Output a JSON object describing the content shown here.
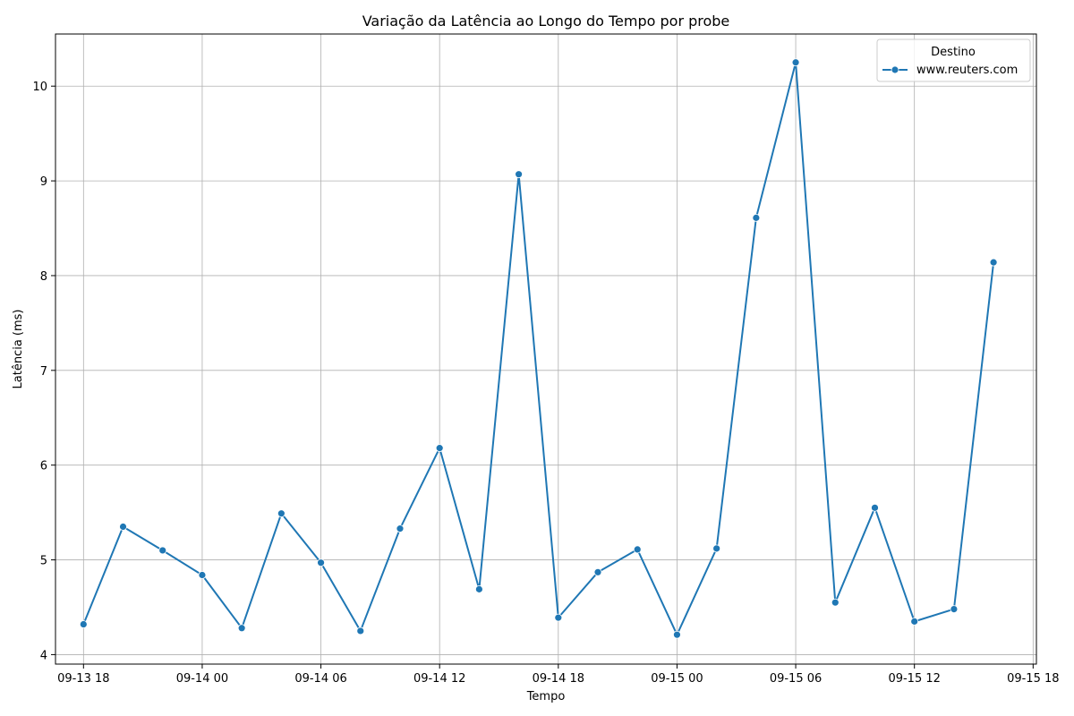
{
  "chart_data": {
    "type": "line",
    "title": "Variação da Latência ao Longo do Tempo por probe",
    "xlabel": "Tempo",
    "ylabel": "Latência (ms)",
    "x_ticks": [
      "09-13 18",
      "09-14 00",
      "09-14 06",
      "09-14 12",
      "09-14 18",
      "09-15 00",
      "09-15 06",
      "09-15 12",
      "09-15 18"
    ],
    "y_ticks": [
      4,
      5,
      6,
      7,
      8,
      9,
      10
    ],
    "xlim": [
      "2024-09-13 16:35",
      "2024-09-15 18:10"
    ],
    "ylim": [
      3.9,
      10.55
    ],
    "grid": true,
    "legend_title": "Destino",
    "legend_position": "top-right",
    "series": [
      {
        "name": "www.reuters.com",
        "color": "#1f77b4",
        "marker": "circle",
        "points": [
          {
            "t": "2024-09-13 18:00",
            "y": 4.32
          },
          {
            "t": "2024-09-13 20:00",
            "y": 5.35
          },
          {
            "t": "2024-09-13 22:00",
            "y": 5.1
          },
          {
            "t": "2024-09-14 00:00",
            "y": 4.84
          },
          {
            "t": "2024-09-14 02:00",
            "y": 4.28
          },
          {
            "t": "2024-09-14 04:00",
            "y": 5.49
          },
          {
            "t": "2024-09-14 06:00",
            "y": 4.97
          },
          {
            "t": "2024-09-14 08:00",
            "y": 4.25
          },
          {
            "t": "2024-09-14 10:00",
            "y": 5.33
          },
          {
            "t": "2024-09-14 12:00",
            "y": 6.18
          },
          {
            "t": "2024-09-14 14:00",
            "y": 4.69
          },
          {
            "t": "2024-09-14 16:00",
            "y": 9.07
          },
          {
            "t": "2024-09-14 18:00",
            "y": 4.39
          },
          {
            "t": "2024-09-14 20:00",
            "y": 4.87
          },
          {
            "t": "2024-09-14 22:00",
            "y": 5.11
          },
          {
            "t": "2024-09-15 00:00",
            "y": 4.21
          },
          {
            "t": "2024-09-15 02:00",
            "y": 5.12
          },
          {
            "t": "2024-09-15 04:00",
            "y": 8.61
          },
          {
            "t": "2024-09-15 06:00",
            "y": 10.25
          },
          {
            "t": "2024-09-15 08:00",
            "y": 4.55
          },
          {
            "t": "2024-09-15 10:00",
            "y": 5.55
          },
          {
            "t": "2024-09-15 12:00",
            "y": 4.35
          },
          {
            "t": "2024-09-15 14:00",
            "y": 4.48
          },
          {
            "t": "2024-09-15 16:00",
            "y": 8.14
          }
        ]
      }
    ]
  }
}
